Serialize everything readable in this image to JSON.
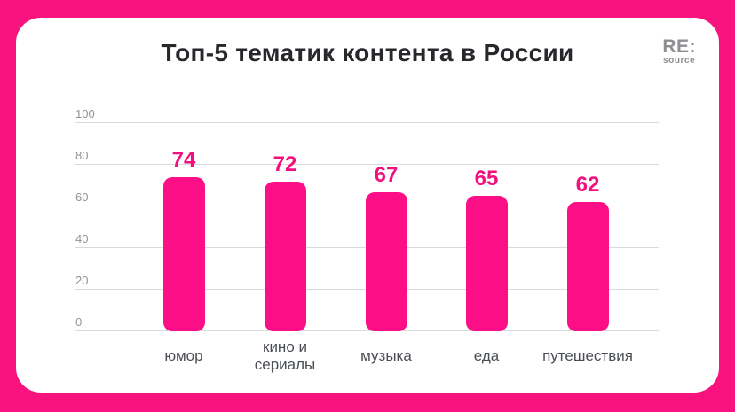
{
  "header": {
    "title": "Топ-5 тематик контента в России"
  },
  "logo": {
    "primary": "RE:",
    "secondary": "source"
  },
  "colors": {
    "frame_pink": "#F8137F",
    "card_bg": "#FFFFFF",
    "bar_fill": "#FB0E86",
    "value_label": "#F2107E",
    "title_text": "#27282B",
    "tick_text": "#8F9499",
    "category_text": "#4A4E54",
    "gridline": "#D8DADD",
    "logo_color": "#8E8E93"
  },
  "chart_data": {
    "type": "bar",
    "title": "Топ-5 тематик контента в России",
    "categories": [
      "юмор",
      "кино и\nсериалы",
      "музыка",
      "еда",
      "путешествия"
    ],
    "values": [
      74,
      72,
      67,
      65,
      62
    ],
    "xlabel": "",
    "ylabel": "",
    "ylim": [
      0,
      100
    ],
    "yticks": [
      0,
      20,
      40,
      60,
      80,
      100
    ],
    "grid": true,
    "legend": false,
    "data_labels": true
  }
}
